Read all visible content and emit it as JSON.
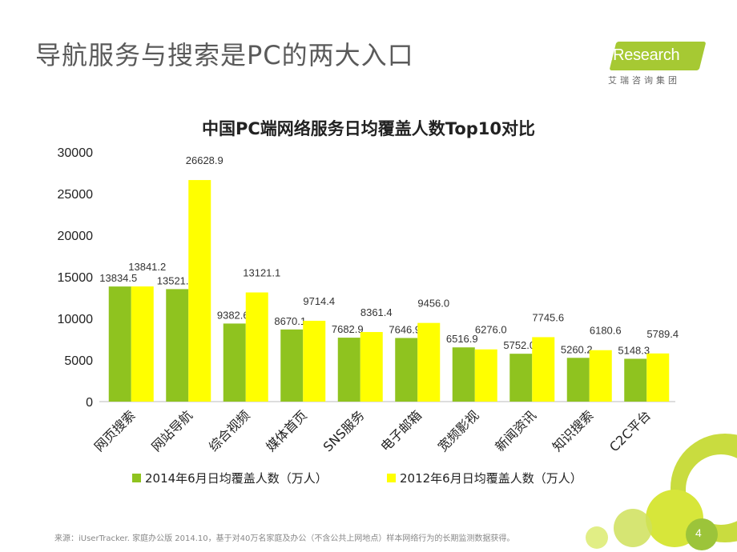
{
  "slide": {
    "title": "导航服务与搜索是PC的两大入口",
    "logo_text": "iResearch",
    "logo_subtitle": "艾瑞咨询集团",
    "source": "来源：iUserTracker. 家庭办公版 2014.10，基于对40万名家庭及办公（不含公共上网地点）样本网络行为的长期监测数据获得。",
    "page_number": "4"
  },
  "colors": {
    "series_2014": "#8fc31f",
    "series_2012": "#ffff00",
    "logo_green": "#a6c933",
    "deco_green": "#c3d82a"
  },
  "chart_data": {
    "type": "bar",
    "title": "中国PC端网络服务日均覆盖人数Top10对比",
    "categories": [
      "网页搜索",
      "网站导航",
      "综合视频",
      "媒体首页",
      "SNS服务",
      "电子邮箱",
      "宽频影视",
      "新闻资讯",
      "知识搜索",
      "C2C平台"
    ],
    "series": [
      {
        "name": "2014年6月日均覆盖人数（万人）",
        "values": [
          13834.5,
          13521.1,
          9382.6,
          8670.1,
          7682.9,
          7646.9,
          6516.9,
          5752.0,
          5260.2,
          5148.3
        ],
        "labels": [
          "13834.5",
          "13521.1",
          "9382.6",
          "8670.1",
          "7682.9",
          "7646.9",
          "6516.9",
          "5752.0",
          "5260.2",
          "5148.3"
        ]
      },
      {
        "name": "2012年6月日均覆盖人数（万人）",
        "values": [
          13841.2,
          26628.9,
          13121.1,
          9714.4,
          8361.4,
          9456.0,
          6276.0,
          7745.6,
          6180.6,
          5789.4
        ],
        "labels": [
          "13841.2",
          "26628.9",
          "13121.1",
          "9714.4",
          "8361.4",
          "9456.0",
          "6276.0",
          "7745.6",
          "6180.6",
          "5789.4"
        ]
      }
    ],
    "ylim": [
      0,
      30000
    ],
    "yticks": [
      "0",
      "5000",
      "10000",
      "15000",
      "20000",
      "25000",
      "30000"
    ],
    "grid": false,
    "legend": "bottom"
  }
}
